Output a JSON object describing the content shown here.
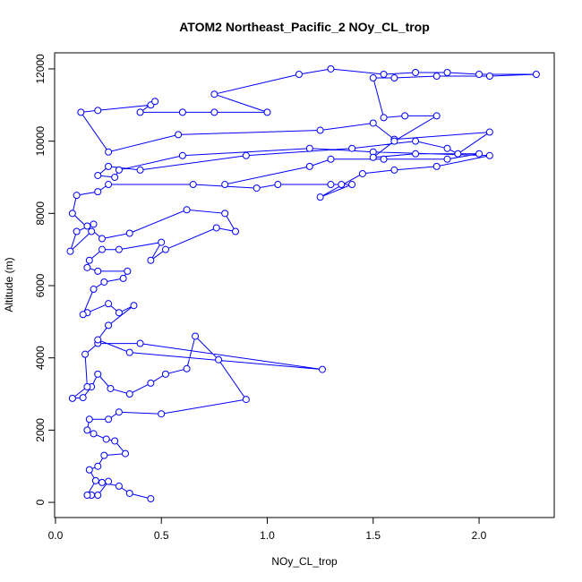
{
  "chart_data": {
    "type": "line",
    "title": "ATOM2 Northeast_Pacific_2 NOy_CL_trop",
    "x_label": "NOy_CL_trop",
    "y_label": "Altitude (m)",
    "xlim": [
      -0.004,
      2.355
    ],
    "ylim": [
      -420,
      12445
    ],
    "xticks": [
      {
        "value": 0,
        "label": "0.0"
      },
      {
        "value": 0.5,
        "label": "0.5"
      },
      {
        "value": 1,
        "label": "1.0"
      },
      {
        "value": 1.5,
        "label": "1.5"
      },
      {
        "value": 2,
        "label": "2.0"
      }
    ],
    "yticks": [
      0,
      2000,
      4000,
      6000,
      8000,
      10000,
      12000
    ],
    "series": [
      {
        "color": "#0000ff",
        "x": [
          0.45,
          0.35,
          0.3,
          0.22,
          0.25,
          0.2,
          0.17,
          0.15,
          0.19,
          0.16,
          0.2,
          0.23,
          0.33,
          0.28,
          0.24,
          0.18,
          0.15,
          0.16,
          0.25,
          0.3,
          0.5,
          0.9,
          0.77,
          0.66,
          0.62,
          0.52,
          0.45,
          0.35,
          0.26,
          0.2,
          0.17,
          0.13,
          0.08,
          0.15,
          0.14,
          0.2,
          0.4,
          1.26,
          0.35,
          0.2,
          0.25,
          0.37,
          0.3,
          0.25,
          0.15,
          0.13,
          0.18,
          0.23,
          0.32,
          0.34,
          0.2,
          0.15,
          0.16,
          0.22,
          0.3,
          0.5,
          0.45,
          0.52,
          0.76,
          0.85,
          0.8,
          0.62,
          0.35,
          0.22,
          0.15,
          0.18,
          0.1,
          0.07,
          0.17,
          0.08,
          0.1,
          0.2,
          0.25,
          0.65,
          0.95,
          1.05,
          1.3,
          1.35,
          1.4,
          1.25,
          1.45,
          1.6,
          1.8,
          2.05,
          1.5,
          1.2,
          0.6,
          0.3,
          0.28,
          0.2,
          0.25,
          0.4,
          0.9,
          1.4,
          1.7,
          1.85,
          1.9,
          2.05,
          1.6,
          1.5,
          1.25,
          0.58,
          0.25,
          0.12,
          0.2,
          0.45,
          0.47,
          0.4,
          0.6,
          0.75,
          1.0,
          0.75,
          1.15,
          1.3,
          1.55,
          1.7,
          1.85,
          2.0,
          2.27,
          2.05,
          1.8,
          1.6,
          1.5,
          1.55,
          1.65,
          1.8,
          1.6,
          1.5,
          1.7,
          2.0,
          1.85,
          1.55,
          1.3,
          1.2,
          0.8
        ],
        "values": [
          100,
          250,
          450,
          550,
          580,
          200,
          200,
          200,
          600,
          900,
          1000,
          1300,
          1350,
          1700,
          1750,
          1900,
          2000,
          2300,
          2300,
          2500,
          2450,
          2850,
          3950,
          4600,
          3700,
          3550,
          3300,
          3000,
          3150,
          3550,
          3200,
          2900,
          2880,
          3200,
          4100,
          4400,
          4400,
          3680,
          4150,
          4500,
          4900,
          5450,
          5250,
          5500,
          5250,
          5200,
          5900,
          6100,
          6200,
          6400,
          6400,
          6500,
          6700,
          7000,
          7000,
          7200,
          6700,
          7000,
          7600,
          7500,
          8000,
          8100,
          7450,
          7300,
          7650,
          7700,
          7500,
          6950,
          7500,
          8000,
          8500,
          8600,
          8800,
          8800,
          8700,
          8800,
          8800,
          8800,
          8800,
          8450,
          9100,
          9200,
          9300,
          9600,
          9700,
          9800,
          9600,
          9200,
          9000,
          9050,
          9300,
          9200,
          9600,
          9800,
          10000,
          9800,
          9650,
          10250,
          10050,
          10500,
          10300,
          10180,
          9700,
          10800,
          10850,
          11000,
          11100,
          10800,
          10800,
          10800,
          10800,
          11300,
          11850,
          12000,
          11850,
          11900,
          11900,
          11850,
          11850,
          11800,
          11800,
          11750,
          11750,
          10650,
          10700,
          10700,
          10000,
          9550,
          9650,
          9650,
          9500,
          9500,
          9500,
          9300,
          8800
        ]
      }
    ]
  }
}
